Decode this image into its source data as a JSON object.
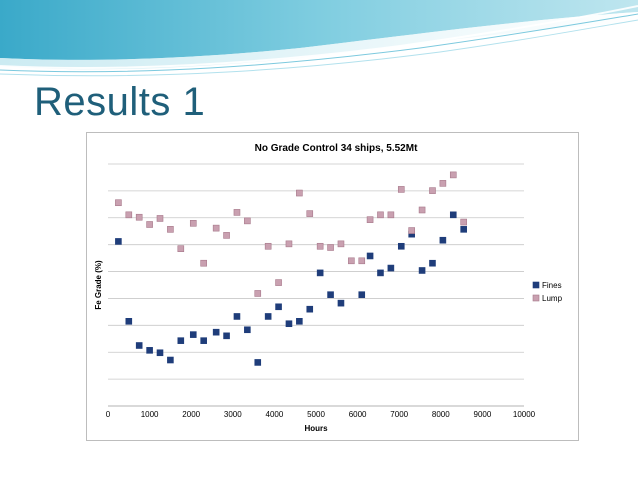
{
  "slide": {
    "title": "Results 1"
  },
  "colors": {
    "banner_light": "#bfe6ef",
    "banner_mid": "#7fcde0",
    "banner_dark": "#3aa9c9",
    "title": "#1f5f7a",
    "fines": "#1f3d7a",
    "lump": "#c9a0b0",
    "lump_border": "#a7788a",
    "grid": "#c8c8c8"
  },
  "chart_data": {
    "type": "scatter",
    "title": "No Grade Control   34 ships, 5.52Mt",
    "xlabel": "Hours",
    "ylabel": "Fe Grade (%)",
    "xlim": [
      0,
      10000
    ],
    "xticks": [
      0,
      1000,
      2000,
      3000,
      4000,
      5000,
      6000,
      7000,
      8000,
      9000,
      10000
    ],
    "ylim": [
      0,
      10
    ],
    "y_gridlines": 9,
    "y_tick_labels_shown": false,
    "grid": true,
    "legend": "right",
    "series": [
      {
        "name": "Fines",
        "marker": "square",
        "x": [
          250,
          500,
          750,
          1000,
          1250,
          1500,
          1750,
          2050,
          2300,
          2600,
          2850,
          3100,
          3350,
          3600,
          3850,
          4100,
          4350,
          4600,
          4850,
          5100,
          5350,
          5600,
          6100,
          6300,
          6550,
          6800,
          7050,
          7300,
          7550,
          7800,
          8050,
          8300,
          8550
        ],
        "y": [
          6.8,
          3.5,
          2.5,
          2.3,
          2.2,
          1.9,
          2.7,
          2.95,
          2.7,
          3.05,
          2.9,
          3.7,
          3.15,
          1.8,
          3.7,
          4.1,
          3.4,
          3.5,
          4.0,
          5.5,
          4.6,
          4.25,
          4.6,
          6.2,
          5.5,
          5.7,
          6.6,
          7.1,
          5.6,
          5.9,
          6.85,
          7.9,
          7.3
        ]
      },
      {
        "name": "Lump",
        "marker": "square",
        "x": [
          250,
          500,
          750,
          1000,
          1250,
          1500,
          1750,
          2050,
          2300,
          2600,
          2850,
          3100,
          3350,
          3600,
          3850,
          4100,
          4350,
          4600,
          4850,
          5100,
          5350,
          5600,
          5850,
          6100,
          6300,
          6550,
          6800,
          7050,
          7300,
          7550,
          7800,
          8050,
          8300,
          8550
        ],
        "y": [
          8.4,
          7.9,
          7.8,
          7.5,
          7.75,
          7.3,
          6.5,
          7.55,
          5.9,
          7.35,
          7.05,
          8.0,
          7.65,
          4.65,
          6.6,
          5.1,
          6.7,
          8.8,
          7.95,
          6.6,
          6.55,
          6.7,
          6.0,
          6.0,
          7.7,
          7.9,
          7.9,
          8.95,
          7.25,
          8.1,
          8.9,
          9.2,
          9.55,
          7.6
        ]
      }
    ]
  }
}
